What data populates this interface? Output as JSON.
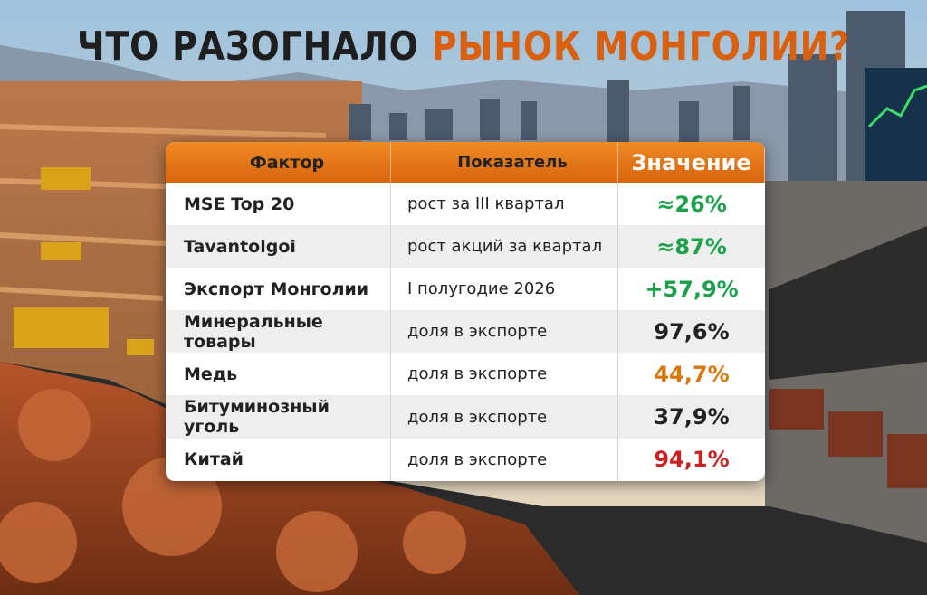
{
  "title": {
    "part1": "ЧТО РАЗОГНАЛО",
    "part2": "РЫНОК МОНГОЛИИ?"
  },
  "table": {
    "headers": [
      "Фактор",
      "Показатель",
      "Значение"
    ],
    "rows": [
      [
        "MSE Top 20",
        "рост за III квартал",
        "≈26%"
      ],
      [
        "Tavantolgoi",
        "рост акций за квартал",
        "≈87%"
      ],
      [
        "Экспорт Монголии",
        "I полугодие 2026",
        "+57,9%"
      ],
      [
        "Минеральные товары",
        "доля в экспорте",
        "97,6%"
      ],
      [
        "Медь",
        "доля в экспорте",
        "44,7%"
      ],
      [
        "Битуминозный уголь",
        "доля в экспорте",
        "37,9%"
      ],
      [
        "Китай",
        "доля в экспорте",
        "94,1%"
      ]
    ],
    "value_colors": [
      "#1aa14a",
      "#1aa14a",
      "#1aa14a",
      "#222222",
      "#d9770f",
      "#222222",
      "#cc1f1f"
    ]
  }
}
